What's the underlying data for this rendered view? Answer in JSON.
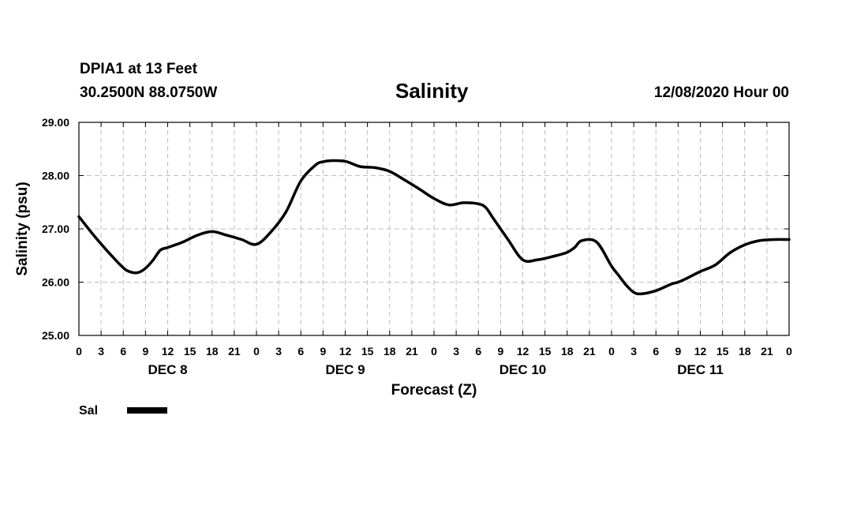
{
  "header": {
    "station": "DPIA1 at 13 Feet",
    "coordinates": "30.2500N 88.0750W",
    "title": "Salinity",
    "issued": "12/08/2020 Hour 00"
  },
  "chart_data": {
    "type": "line",
    "title": "Salinity",
    "xlabel": "Forecast (Z)",
    "ylabel": "Salinity (psu)",
    "ylim": [
      25.0,
      29.0
    ],
    "y_ticks": [
      "25.00",
      "26.00",
      "27.00",
      "28.00",
      "29.00"
    ],
    "xlim": [
      0,
      96
    ],
    "x_tick_labels": [
      "0",
      "3",
      "6",
      "9",
      "12",
      "15",
      "18",
      "21",
      "0",
      "3",
      "6",
      "9",
      "12",
      "15",
      "18",
      "21",
      "0",
      "3",
      "6",
      "9",
      "12",
      "15",
      "18",
      "21",
      "0",
      "3",
      "6",
      "9",
      "12",
      "15",
      "18",
      "21",
      "0"
    ],
    "day_labels": [
      {
        "label": "DEC 8",
        "hour": 12
      },
      {
        "label": "DEC 9",
        "hour": 36
      },
      {
        "label": "DEC 10",
        "hour": 60
      },
      {
        "label": "DEC 11",
        "hour": 84
      }
    ],
    "grid": true,
    "legend_position": "bottom-left",
    "series": [
      {
        "name": "Sal",
        "color": "#000000",
        "x": [
          0,
          2,
          4,
          6,
          7,
          8,
          9,
          10,
          11,
          12,
          14,
          16,
          18,
          20,
          22,
          24,
          26,
          28,
          30,
          32,
          33,
          34,
          36,
          38,
          40,
          42,
          44,
          46,
          48,
          50,
          52,
          54,
          55,
          56,
          58,
          60,
          62,
          64,
          66,
          67,
          68,
          70,
          72,
          73,
          74,
          75,
          76,
          78,
          80,
          81,
          82,
          84,
          86,
          88,
          90,
          92,
          94,
          96
        ],
        "values": [
          27.23,
          26.88,
          26.56,
          26.27,
          26.19,
          26.18,
          26.26,
          26.41,
          26.6,
          26.65,
          26.75,
          26.88,
          26.95,
          26.88,
          26.8,
          26.71,
          26.95,
          27.32,
          27.9,
          28.2,
          28.26,
          28.28,
          28.27,
          28.17,
          28.15,
          28.08,
          27.92,
          27.75,
          27.57,
          27.45,
          27.49,
          27.47,
          27.4,
          27.2,
          26.8,
          26.42,
          26.42,
          26.48,
          26.56,
          26.65,
          26.78,
          26.75,
          26.3,
          26.12,
          25.94,
          25.81,
          25.78,
          25.84,
          25.96,
          26.0,
          26.06,
          26.2,
          26.32,
          26.55,
          26.7,
          26.78,
          26.8,
          26.8
        ]
      }
    ]
  }
}
